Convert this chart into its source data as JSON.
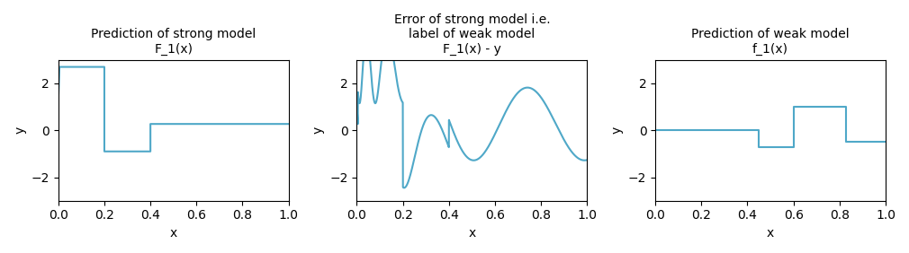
{
  "title1": "Prediction of strong model\nF_1(x)",
  "title2": "Error of strong model i.e.\nlabel of weak model\nF_1(x) - y",
  "title3": "Prediction of weak model\nf_1(x)",
  "xlabel": "x",
  "ylabel": "y",
  "ylim": [
    -3,
    3
  ],
  "xlim": [
    0.0,
    1.0
  ],
  "line_color": "#4fa8c8",
  "linewidth": 1.5,
  "plot1_segments": [
    [
      0.0,
      1.3
    ],
    [
      0.005,
      2.7
    ],
    [
      0.2,
      2.7
    ],
    [
      0.2,
      -0.9
    ],
    [
      0.4,
      -0.9
    ],
    [
      0.4,
      0.27
    ],
    [
      1.0,
      0.27
    ]
  ],
  "plot3_segments": [
    [
      0.0,
      0.0
    ],
    [
      0.45,
      0.0
    ],
    [
      0.45,
      -0.7
    ],
    [
      0.6,
      -0.7
    ],
    [
      0.6,
      1.0
    ],
    [
      0.83,
      1.0
    ],
    [
      0.83,
      -0.5
    ],
    [
      1.0,
      -0.5
    ]
  ],
  "figsize": [
    10.1,
    2.82
  ],
  "dpi": 100
}
